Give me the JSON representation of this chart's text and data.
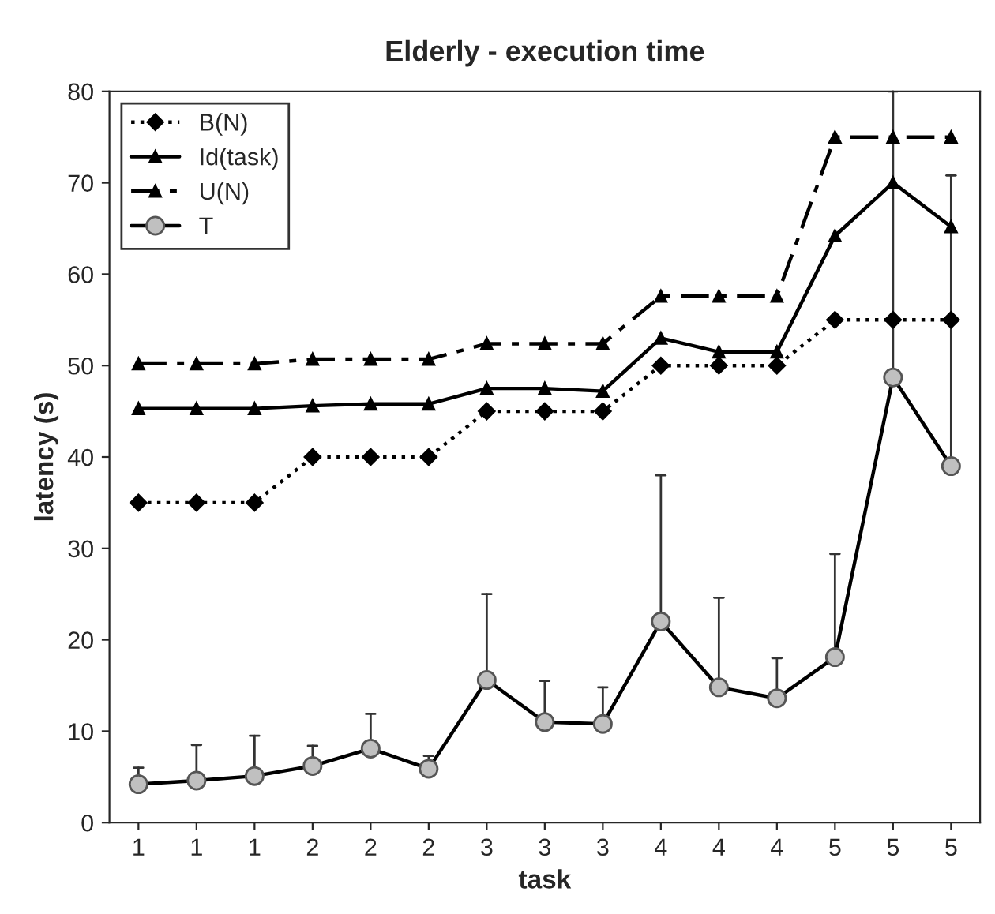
{
  "chart_data": {
    "type": "line",
    "title": "Elderly - execution time",
    "xlabel": "task",
    "ylabel": "latency (s)",
    "categories": [
      "1",
      "1",
      "1",
      "2",
      "2",
      "2",
      "3",
      "3",
      "3",
      "4",
      "4",
      "4",
      "5",
      "5",
      "5"
    ],
    "series": [
      {
        "name": "B(N)",
        "color": "#000000",
        "marker": "diamond",
        "line_style": "dotted",
        "values": [
          35,
          35,
          35,
          40,
          40,
          40,
          45,
          45,
          45,
          50,
          50,
          50,
          55,
          55,
          55
        ]
      },
      {
        "name": "Id(task)",
        "color": "#000000",
        "marker": "triangle",
        "line_style": "solid",
        "values": [
          45.3,
          45.3,
          45.3,
          45.6,
          45.8,
          45.8,
          47.5,
          47.5,
          47.2,
          53,
          51.5,
          51.5,
          64.2,
          70,
          65.2
        ]
      },
      {
        "name": "U(N)",
        "color": "#000000",
        "marker": "triangle",
        "line_style": "dashed",
        "values": [
          50.2,
          50.2,
          50.2,
          50.7,
          50.7,
          50.7,
          52.4,
          52.4,
          52.4,
          57.6,
          57.6,
          57.6,
          75,
          75,
          75
        ]
      },
      {
        "name": "T",
        "color": "#000000",
        "marker": "circle",
        "line_style": "solid",
        "values": [
          4.2,
          4.6,
          5.1,
          6.2,
          8.1,
          5.9,
          15.6,
          11,
          10.8,
          22,
          14.8,
          13.6,
          18.1,
          48.7,
          39
        ],
        "errors": [
          [
            4.2,
            6
          ],
          [
            4.6,
            8.5
          ],
          [
            5.1,
            9.5
          ],
          [
            6.2,
            8.4
          ],
          [
            8.1,
            11.9
          ],
          [
            5.9,
            7.3
          ],
          [
            15.6,
            25
          ],
          [
            11,
            15.5
          ],
          [
            10.8,
            14.8
          ],
          [
            22,
            38
          ],
          [
            14.8,
            24.6
          ],
          [
            13.6,
            18
          ],
          [
            18.1,
            29.4
          ],
          [
            48.7,
            80
          ],
          [
            39,
            70.8
          ]
        ]
      }
    ],
    "ylim": [
      0,
      80
    ],
    "yticks": [
      0,
      10,
      20,
      30,
      40,
      50,
      60,
      70,
      80
    ],
    "grid": false,
    "legend": "top left"
  }
}
